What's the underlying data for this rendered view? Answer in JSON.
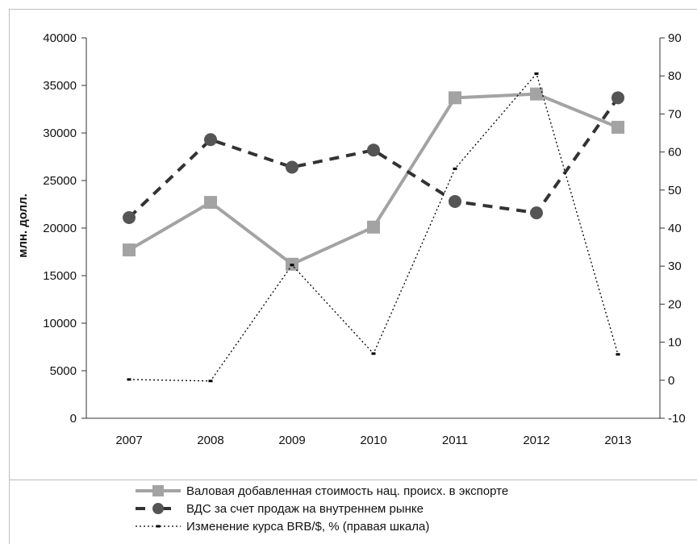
{
  "chart_data": {
    "type": "line",
    "title": "",
    "xlabel": "",
    "ylabel": "млн. долл.",
    "y2label": "",
    "categories": [
      "2007",
      "2008",
      "2009",
      "2010",
      "2011",
      "2012",
      "2013"
    ],
    "ylim": [
      0,
      40000
    ],
    "y2lim": [
      -10,
      90
    ],
    "y_ticks": [
      "0",
      "5000",
      "10000",
      "15000",
      "20000",
      "25000",
      "30000",
      "35000",
      "40000"
    ],
    "y2_ticks": [
      "-10",
      "0",
      "10",
      "20",
      "30",
      "40",
      "50",
      "60",
      "70",
      "80",
      "90"
    ],
    "grid": false,
    "legend_position": "bottom",
    "series": [
      {
        "name": "Валовая добавленная стоимость нац. происх. в экспорте",
        "axis": "left",
        "style": "solid-gray-square",
        "color": "#a3a3a3",
        "values": [
          17700,
          22700,
          16200,
          20100,
          33700,
          34100,
          30600
        ]
      },
      {
        "name": "ВДС за счет продаж на внутреннем рынке",
        "axis": "left",
        "style": "dashed-black-circle",
        "color": "#333333",
        "values": [
          21100,
          29300,
          26400,
          28200,
          22800,
          21600,
          33700
        ]
      },
      {
        "name": "Изменение курса BRB/$, % (правая шкала)",
        "axis": "right",
        "style": "dotted-black-dot",
        "color": "#000000",
        "values": [
          0.2,
          -0.2,
          30.3,
          7.0,
          55.6,
          80.6,
          6.8
        ]
      }
    ]
  }
}
